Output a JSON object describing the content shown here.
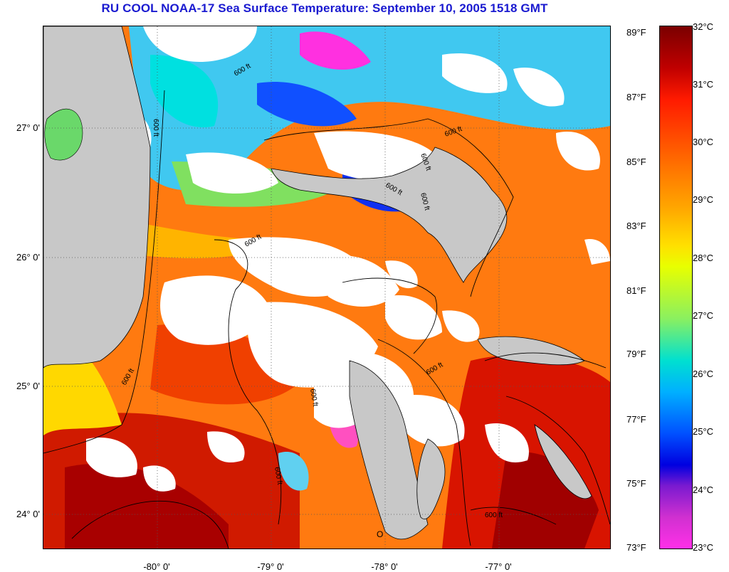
{
  "title": "RU COOL  NOAA-17  Sea Surface Temperature:  September 10, 2005 1518 GMT",
  "lat_labels": [
    "27° 0'",
    "26° 0'",
    "25° 0'",
    "24° 0'"
  ],
  "lon_labels": [
    "-80° 0'",
    "-79° 0'",
    "-78° 0'",
    "-77° 0'"
  ],
  "contour_labels": [
    "600 ft",
    "600 ft",
    "600 ft",
    "600 ft",
    "600 ft",
    "600 ft",
    "600 ft",
    "600 ft",
    "600 ft",
    "600 ft",
    "600 ft",
    "600 ft"
  ],
  "marker_label": "O",
  "scale_f": [
    "89°F",
    "87°F",
    "85°F",
    "83°F",
    "81°F",
    "79°F",
    "77°F",
    "75°F",
    "73°F"
  ],
  "scale_c": [
    "32°C",
    "31°C",
    "30°C",
    "29°C",
    "28°C",
    "27°C",
    "26°C",
    "25°C",
    "24°C",
    "23°C"
  ],
  "colors": {
    "title": "#1a1ad0",
    "land": "#c8c8c8",
    "cloud": "#ffffff",
    "hot": "#c00000",
    "warm": "#ff8000",
    "mild": "#ffd000",
    "cool": "#00d8f0",
    "cold": "#0030ff",
    "magenta": "#ff30e8"
  }
}
